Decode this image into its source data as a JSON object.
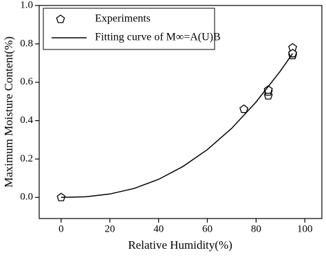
{
  "chart_data": {
    "type": "scatter",
    "xlabel": "Relative Humidity(%)",
    "ylabel": "Maximum Moisture Content(%)",
    "xlim": [
      -9,
      107
    ],
    "xticks": [
      0,
      20,
      40,
      60,
      80,
      100
    ],
    "ylim": [
      -0.11,
      1.0
    ],
    "yticks": [
      {
        "value": 0,
        "label": "0.0"
      },
      0.2,
      0.4,
      0.6,
      0.8,
      {
        "value": 1,
        "label": "1.0"
      }
    ],
    "legend": "upper left",
    "series": [
      {
        "name": "Experiments",
        "type": "scatter",
        "marker": "pentagon",
        "color": "#000000",
        "x": [
          0,
          75,
          85,
          85,
          85,
          95,
          95,
          95,
          95
        ],
        "values": [
          0,
          0.46,
          0.53,
          0.55,
          0.56,
          0.74,
          0.75,
          0.78,
          0.75
        ]
      },
      {
        "name": "Fitting curve of  M∞=A(U)B",
        "type": "line",
        "color": "#000000",
        "x": [
          0,
          10,
          20,
          30,
          40,
          50,
          60,
          70,
          80,
          90,
          95
        ],
        "values": [
          0,
          0.003,
          0.018,
          0.047,
          0.094,
          0.161,
          0.249,
          0.36,
          0.497,
          0.659,
          0.75
        ]
      }
    ]
  }
}
